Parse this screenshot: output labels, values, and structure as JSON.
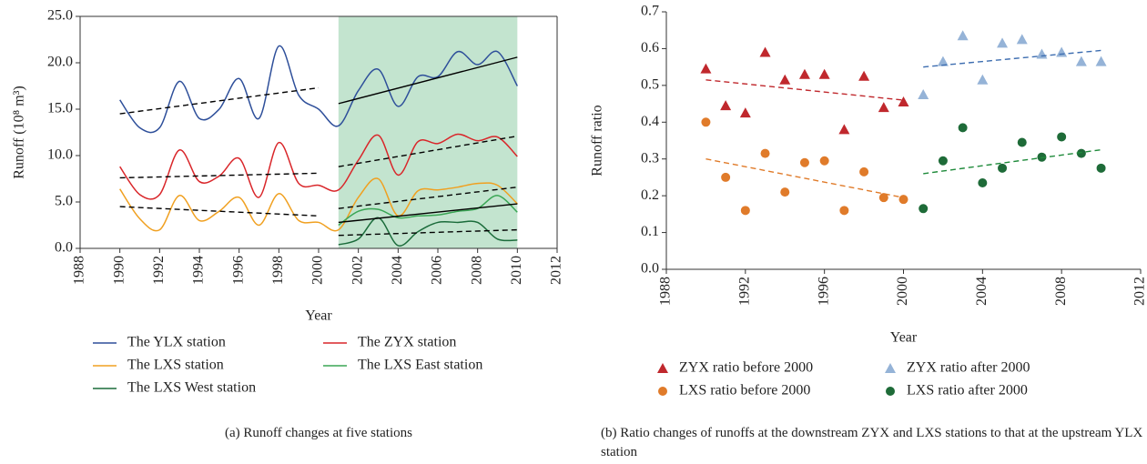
{
  "chart_data": [
    {
      "type": "line",
      "xlabel": "Year",
      "ylabel": "Runoff (10⁸ m³)",
      "caption": "(a)  Runoff changes at five stations",
      "xlim": [
        1988,
        2012
      ],
      "xticks": [
        1988,
        1990,
        1992,
        1994,
        1996,
        1998,
        2000,
        2002,
        2004,
        2006,
        2008,
        2010,
        2012
      ],
      "ylim": [
        0,
        25
      ],
      "yticks": [
        {
          "value": 0,
          "label": "0.0"
        },
        {
          "value": 5,
          "label": "5.0"
        },
        {
          "value": 10,
          "label": "10.0"
        },
        {
          "value": 15,
          "label": "15.0"
        },
        {
          "value": 20,
          "label": "20.0"
        },
        {
          "value": 25,
          "label": "25.0"
        }
      ],
      "shaded_range": [
        2001,
        2010
      ],
      "shade_color": "#c3e4cf",
      "x": [
        1990,
        1991,
        1992,
        1993,
        1994,
        1995,
        1996,
        1997,
        1998,
        1999,
        2000,
        2001,
        2002,
        2003,
        2004,
        2005,
        2006,
        2007,
        2008,
        2009,
        2010
      ],
      "series": [
        {
          "name": "The YLX station",
          "color": "#2e4f9a",
          "values": [
            16.0,
            13.0,
            13.0,
            18.0,
            14.0,
            15.0,
            18.3,
            14.0,
            21.8,
            16.5,
            15.0,
            13.2,
            17.0,
            19.3,
            15.3,
            18.5,
            18.5,
            21.2,
            19.8,
            21.2,
            17.5
          ]
        },
        {
          "name": "The ZYX station",
          "color": "#d9262a",
          "values": [
            8.8,
            5.8,
            5.8,
            10.6,
            7.2,
            7.8,
            9.7,
            5.5,
            11.4,
            7.0,
            6.8,
            6.3,
            9.5,
            12.2,
            7.9,
            11.5,
            11.3,
            12.3,
            11.6,
            12.0,
            9.9
          ]
        },
        {
          "name": "The LXS station",
          "color": "#f0a020",
          "values": [
            6.4,
            3.2,
            2.0,
            5.7,
            3.0,
            4.0,
            5.5,
            2.5,
            5.9,
            3.0,
            2.8,
            2.0,
            5.5,
            7.5,
            3.5,
            6.2,
            6.3,
            6.6,
            7.0,
            6.8,
            4.8
          ]
        },
        {
          "name": "The LXS East station",
          "color": "#3aa655",
          "values": [
            null,
            null,
            null,
            null,
            null,
            null,
            null,
            null,
            null,
            null,
            null,
            2.5,
            4.0,
            4.2,
            3.3,
            3.5,
            3.6,
            4.0,
            4.3,
            5.7,
            3.9
          ]
        },
        {
          "name": "The LXS West station",
          "color": "#1a6b3a",
          "values": [
            null,
            null,
            null,
            null,
            null,
            null,
            null,
            null,
            null,
            null,
            null,
            0.4,
            1.0,
            3.3,
            0.3,
            1.8,
            2.8,
            2.8,
            2.8,
            1.0,
            0.9
          ]
        }
      ],
      "trend_lines": [
        {
          "x": [
            1990,
            2000
          ],
          "values": [
            14.5,
            17.3
          ],
          "dashed": true
        },
        {
          "x": [
            2001,
            2010
          ],
          "values": [
            15.6,
            20.6
          ],
          "dashed": false
        },
        {
          "x": [
            1990,
            2000
          ],
          "values": [
            7.6,
            8.1
          ],
          "dashed": true
        },
        {
          "x": [
            2001,
            2010
          ],
          "values": [
            8.8,
            12.1
          ],
          "dashed": true
        },
        {
          "x": [
            1990,
            2000
          ],
          "values": [
            4.5,
            3.5
          ],
          "dashed": true
        },
        {
          "x": [
            2001,
            2010
          ],
          "values": [
            4.3,
            6.6
          ],
          "dashed": true
        },
        {
          "x": [
            2001,
            2010
          ],
          "values": [
            2.8,
            4.8
          ],
          "dashed": false
        },
        {
          "x": [
            2001,
            2010
          ],
          "values": [
            1.4,
            2.0
          ],
          "dashed": true
        }
      ]
    },
    {
      "type": "scatter",
      "xlabel": "Year",
      "ylabel": "Runoff ratio",
      "caption": "(b)  Ratio changes of runoffs at the downstream ZYX and LXS stations to that at the upstream YLX station",
      "xlim": [
        1988,
        2012
      ],
      "xticks": [
        1988,
        1992,
        1996,
        2000,
        2004,
        2008,
        2012
      ],
      "ylim": [
        0,
        0.7
      ],
      "yticks": [
        {
          "value": 0,
          "label": "0.0"
        },
        0.1,
        0.2,
        0.3,
        0.4,
        0.5,
        0.6,
        0.7
      ],
      "series": [
        {
          "name": "ZYX ratio before 2000",
          "color": "#c0282d",
          "marker": "triangle",
          "x": [
            1990,
            1991,
            1992,
            1993,
            1994,
            1995,
            1996,
            1997,
            1998,
            1999,
            2000
          ],
          "values": [
            0.545,
            0.445,
            0.425,
            0.59,
            0.515,
            0.53,
            0.53,
            0.38,
            0.525,
            0.44,
            0.455
          ]
        },
        {
          "name": "ZYX ratio after 2000",
          "color": "#95b3d7",
          "marker": "triangle",
          "x": [
            2001,
            2002,
            2003,
            2004,
            2005,
            2006,
            2007,
            2008,
            2009,
            2010
          ],
          "values": [
            0.475,
            0.565,
            0.635,
            0.515,
            0.615,
            0.625,
            0.585,
            0.59,
            0.565,
            0.565
          ]
        },
        {
          "name": "LXS ratio before 2000",
          "color": "#e07b2a",
          "marker": "circle",
          "x": [
            1990,
            1991,
            1992,
            1993,
            1994,
            1995,
            1996,
            1997,
            1998,
            1999,
            2000
          ],
          "values": [
            0.4,
            0.25,
            0.16,
            0.315,
            0.21,
            0.29,
            0.295,
            0.16,
            0.265,
            0.195,
            0.19
          ]
        },
        {
          "name": "LXS ratio after 2000",
          "color": "#1e6b38",
          "marker": "circle",
          "x": [
            2001,
            2002,
            2003,
            2004,
            2005,
            2006,
            2007,
            2008,
            2009,
            2010
          ],
          "values": [
            0.165,
            0.295,
            0.385,
            0.235,
            0.275,
            0.345,
            0.305,
            0.36,
            0.315,
            0.275
          ]
        }
      ],
      "trend_lines": [
        {
          "x": [
            1990,
            2000
          ],
          "values": [
            0.515,
            0.46
          ],
          "color": "#c0282d",
          "dashed": true
        },
        {
          "x": [
            2001,
            2010
          ],
          "values": [
            0.55,
            0.595
          ],
          "color": "#3d6db0",
          "dashed": true
        },
        {
          "x": [
            1990,
            2000
          ],
          "values": [
            0.3,
            0.195
          ],
          "color": "#e07b2a",
          "dashed": true
        },
        {
          "x": [
            2001,
            2010
          ],
          "values": [
            0.26,
            0.325
          ],
          "color": "#1e8a3a",
          "dashed": true
        }
      ]
    }
  ]
}
